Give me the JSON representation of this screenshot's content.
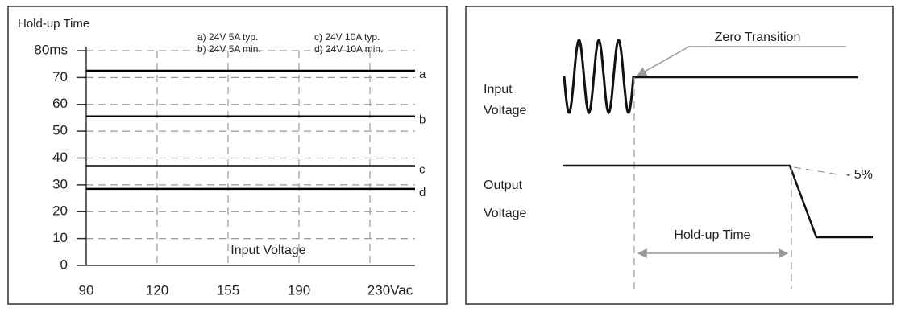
{
  "chart_data": {
    "type": "hline",
    "title": "Hold-up Time",
    "x_label": "Input Voltage",
    "categories": [
      "90",
      "120",
      "155",
      "190",
      "230Vac"
    ],
    "series": [
      {
        "name": "a",
        "label": "a) 24V 5A typ.",
        "value": 72.5,
        "color": "#000000"
      },
      {
        "name": "b",
        "label": "b) 24V 5A min.",
        "value": 55.5,
        "color": "#000000"
      },
      {
        "name": "c",
        "label": "c) 24V 10A typ.",
        "value": 37,
        "color": "#000000"
      },
      {
        "name": "d",
        "label": "d) 24V 10A min.",
        "value": 28.5,
        "color": "#000000"
      }
    ],
    "ylim": [
      0,
      80
    ],
    "yticks": [
      0,
      10,
      20,
      30,
      40,
      50,
      60,
      70,
      {
        "value": 80,
        "label": "80ms"
      }
    ],
    "grid": true
  },
  "diagram": {
    "zero_transition": "Zero Transition",
    "input_voltage": [
      "Input",
      "Voltage"
    ],
    "output_voltage": [
      "Output",
      "Voltage"
    ],
    "threshold": "- 5%",
    "hold_up_time": "Hold-up Time"
  }
}
